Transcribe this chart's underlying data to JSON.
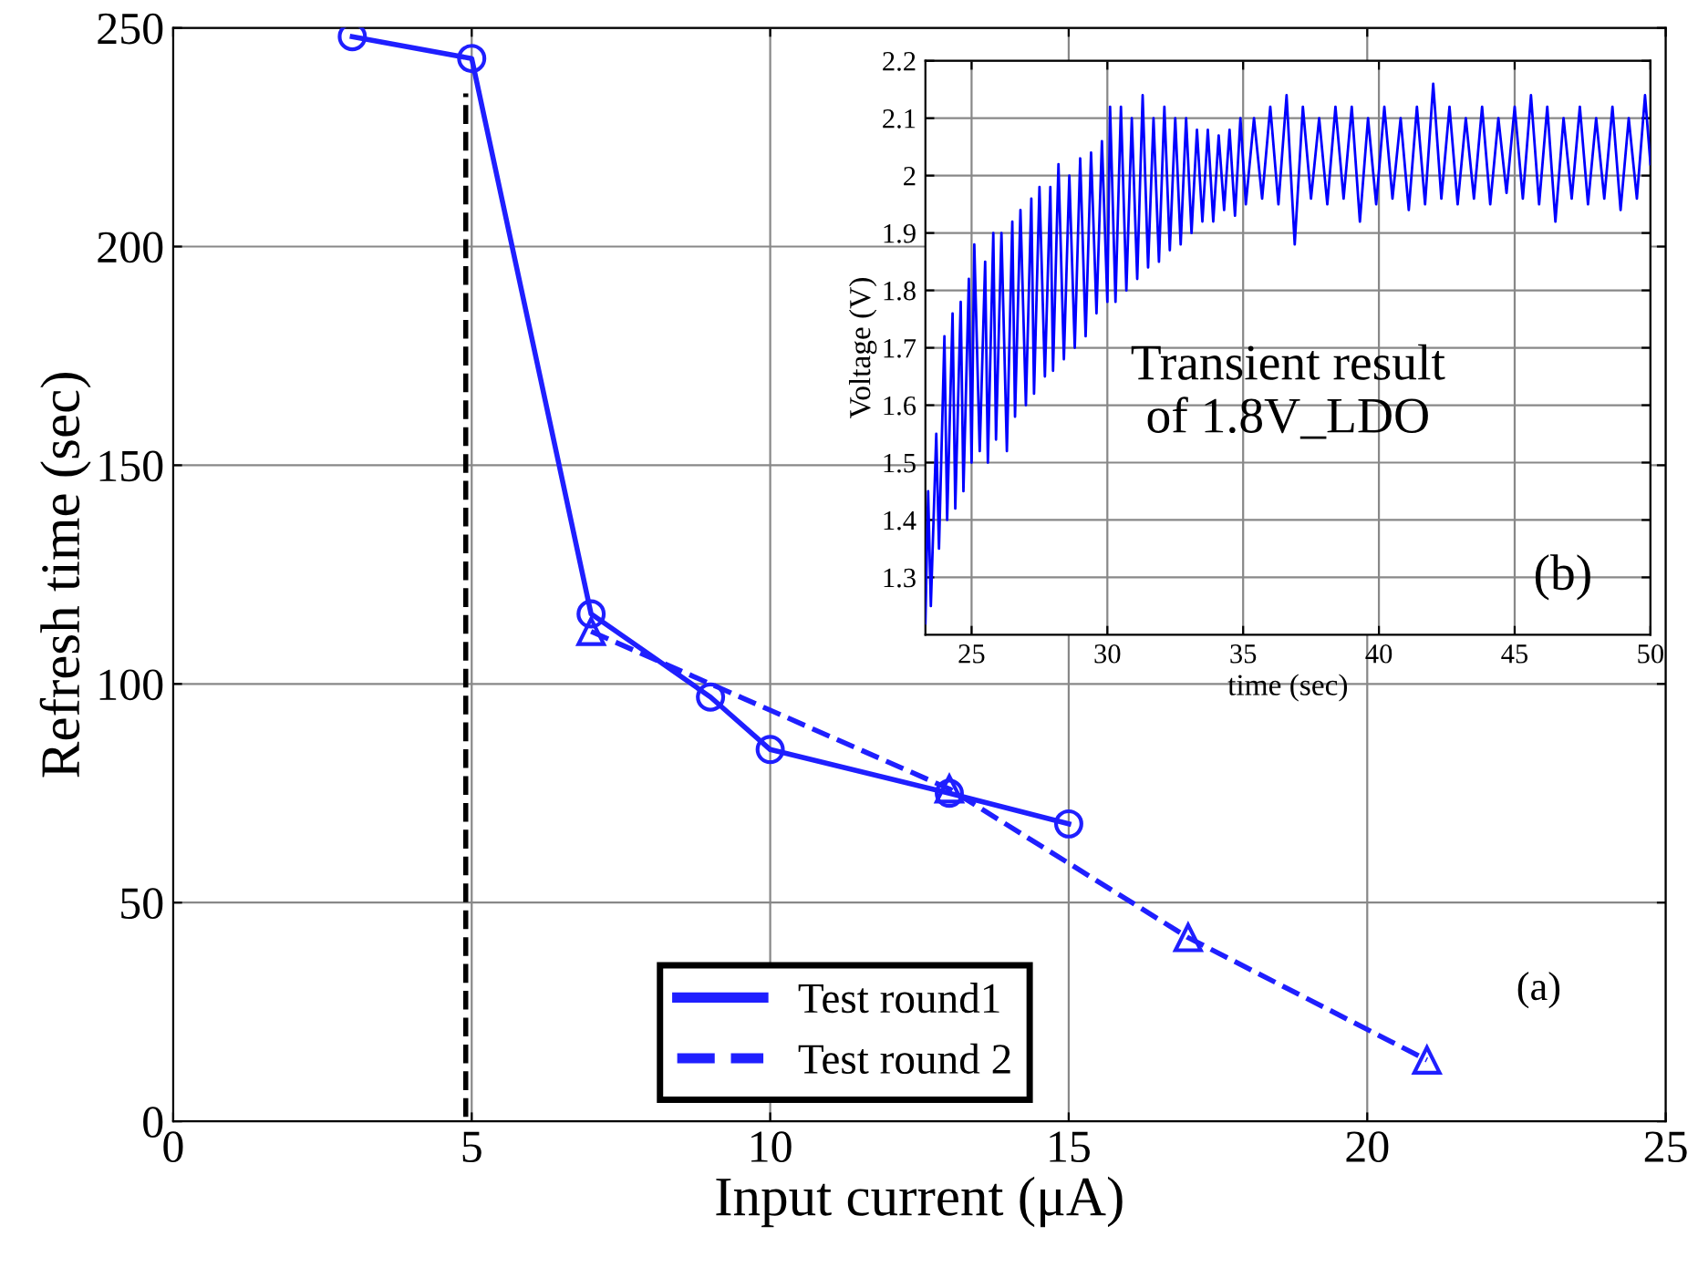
{
  "chart_data": [
    {
      "type": "line",
      "xlabel": "Input current (μA)",
      "ylabel": "Refresh time (sec)",
      "xlim": [
        0,
        25
      ],
      "ylim": [
        0,
        250
      ],
      "xticks": [
        0,
        5,
        10,
        15,
        20,
        25
      ],
      "yticks": [
        0,
        50,
        100,
        150,
        200,
        250
      ],
      "grid": true,
      "legend": "bottom",
      "annotations": [
        "(a)"
      ],
      "series": [
        {
          "name": "Test round1",
          "color": "#1f1fff",
          "marker": "circle",
          "line_style": "solid",
          "x": [
            3,
            5,
            7,
            9,
            10,
            13,
            15
          ],
          "values": [
            248,
            243,
            116,
            97,
            85,
            75,
            68
          ]
        },
        {
          "name": "Test round 2",
          "color": "#1f1fff",
          "marker": "triangle",
          "line_style": "dashed",
          "x": [
            7,
            13,
            17,
            21
          ],
          "values": [
            112,
            76,
            42,
            14
          ]
        },
        {
          "color": "#000000",
          "marker": "none",
          "line_style": "dashed",
          "x": [
            4.9,
            4.9
          ],
          "values": [
            1,
            235
          ]
        }
      ]
    },
    {
      "type": "line",
      "xlabel": "time (sec)",
      "ylabel": "Voltage (V)",
      "xlim": [
        23.3,
        50
      ],
      "ylim": [
        1.2,
        2.2
      ],
      "xticks": [
        25,
        30,
        35,
        40,
        45,
        50
      ],
      "yticks": [
        1.3,
        1.4,
        1.5,
        1.6,
        1.7,
        1.8,
        1.9,
        2,
        2.1,
        2.2
      ],
      "grid": true,
      "annotations": [
        "Transient result\nof 1.8V_LDO",
        "(b)"
      ],
      "series": [
        {
          "color": "#0000ff",
          "marker": "none",
          "line_style": "solid",
          "x": [
            23.3,
            23.4,
            23.5,
            23.7,
            23.8,
            24.0,
            24.1,
            24.3,
            24.4,
            24.6,
            24.7,
            24.9,
            25.0,
            25.1,
            25.3,
            25.5,
            25.6,
            25.8,
            25.9,
            26.1,
            26.3,
            26.5,
            26.6,
            26.8,
            27.0,
            27.2,
            27.3,
            27.5,
            27.7,
            27.9,
            28.0,
            28.2,
            28.4,
            28.6,
            28.8,
            29.0,
            29.2,
            29.4,
            29.6,
            29.8,
            30.0,
            30.1,
            30.3,
            30.5,
            30.7,
            30.9,
            31.1,
            31.3,
            31.5,
            31.7,
            31.9,
            32.1,
            32.3,
            32.5,
            32.7,
            32.9,
            33.1,
            33.3,
            33.5,
            33.7,
            33.9,
            34.1,
            34.3,
            34.5,
            34.7,
            34.9,
            35.1,
            35.4,
            35.7,
            36.0,
            36.3,
            36.6,
            36.9,
            37.2,
            37.5,
            37.8,
            38.1,
            38.4,
            38.7,
            39.0,
            39.3,
            39.6,
            39.9,
            40.2,
            40.5,
            40.8,
            41.1,
            41.4,
            41.7,
            42.0,
            42.3,
            42.6,
            42.9,
            43.2,
            43.5,
            43.8,
            44.1,
            44.4,
            44.7,
            45.0,
            45.3,
            45.6,
            45.9,
            46.2,
            46.5,
            46.8,
            47.1,
            47.4,
            47.7,
            48.0,
            48.3,
            48.6,
            48.9,
            49.2,
            49.5,
            49.8,
            50.0
          ],
          "values": [
            1.22,
            1.45,
            1.25,
            1.55,
            1.35,
            1.72,
            1.4,
            1.76,
            1.42,
            1.78,
            1.45,
            1.82,
            1.5,
            1.88,
            1.52,
            1.85,
            1.5,
            1.9,
            1.54,
            1.9,
            1.52,
            1.92,
            1.58,
            1.94,
            1.6,
            1.96,
            1.62,
            1.98,
            1.65,
            1.98,
            1.66,
            2.02,
            1.68,
            2.0,
            1.7,
            2.03,
            1.72,
            2.04,
            1.76,
            2.06,
            1.78,
            2.12,
            1.78,
            2.12,
            1.8,
            2.1,
            1.82,
            2.14,
            1.84,
            2.1,
            1.85,
            2.12,
            1.87,
            2.1,
            1.88,
            2.1,
            1.9,
            2.08,
            1.92,
            2.08,
            1.92,
            2.07,
            1.94,
            2.08,
            1.93,
            2.1,
            1.95,
            2.1,
            1.96,
            2.12,
            1.95,
            2.14,
            1.88,
            2.12,
            1.96,
            2.1,
            1.95,
            2.12,
            1.96,
            2.12,
            1.92,
            2.1,
            1.95,
            2.12,
            1.96,
            2.1,
            1.94,
            2.12,
            1.95,
            2.16,
            1.96,
            2.12,
            1.95,
            2.1,
            1.96,
            2.12,
            1.95,
            2.1,
            1.97,
            2.12,
            1.96,
            2.14,
            1.95,
            2.12,
            1.92,
            2.1,
            1.96,
            2.12,
            1.95,
            2.1,
            1.96,
            2.12,
            1.94,
            2.1,
            1.96,
            2.14,
            2.02
          ]
        }
      ]
    }
  ]
}
